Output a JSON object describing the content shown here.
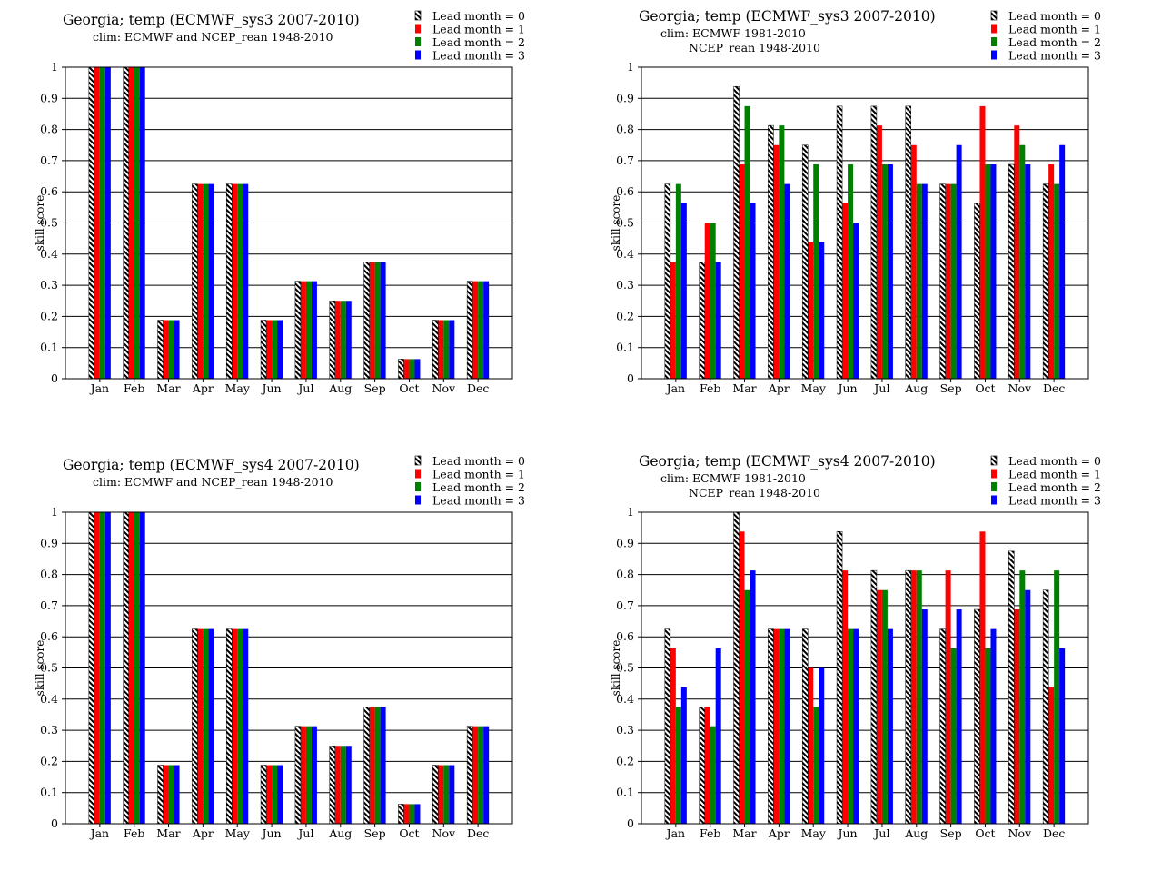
{
  "colors": {
    "lead0_pattern": "#000000",
    "lead1": "#ff0000",
    "lead2": "#008000",
    "lead3": "#0000ff",
    "grid": "#000000",
    "background": "#ffffff"
  },
  "chart_data": [
    {
      "type": "bar",
      "title": "Georgia; temp (ECMWF_sys3 2007-2010)",
      "subtitle_lines": [
        "clim: ECMWF and NCEP_rean 1948-2010"
      ],
      "xlabel": "",
      "ylabel": "skill  score",
      "ylim": [
        0,
        1
      ],
      "yticks": [
        "0",
        "0.1",
        "0.2",
        "0.3",
        "0.4",
        "0.5",
        "0.6",
        "0.7",
        "0.8",
        "0.9",
        "1"
      ],
      "grid": true,
      "legend_position": "top-right",
      "categories": [
        "Jan",
        "Feb",
        "Mar",
        "Apr",
        "May",
        "Jun",
        "Jul",
        "Aug",
        "Sep",
        "Oct",
        "Nov",
        "Dec"
      ],
      "series": [
        {
          "name": "Lead month = 0",
          "values": [
            1,
            1,
            0.188,
            0.625,
            0.625,
            0.188,
            0.313,
            0.25,
            0.375,
            0.063,
            0.188,
            0.313
          ]
        },
        {
          "name": "Lead month = 1",
          "values": [
            1,
            1,
            0.188,
            0.625,
            0.625,
            0.188,
            0.313,
            0.25,
            0.375,
            0.063,
            0.188,
            0.313
          ]
        },
        {
          "name": "Lead month = 2",
          "values": [
            1,
            1,
            0.188,
            0.625,
            0.625,
            0.188,
            0.313,
            0.25,
            0.375,
            0.063,
            0.188,
            0.313
          ]
        },
        {
          "name": "Lead month = 3",
          "values": [
            1,
            1,
            0.188,
            0.625,
            0.625,
            0.188,
            0.313,
            0.25,
            0.375,
            0.063,
            0.188,
            0.313
          ]
        }
      ]
    },
    {
      "type": "bar",
      "title": "Georgia; temp (ECMWF_sys3 2007-2010)",
      "subtitle_lines": [
        "clim: ECMWF 1981-2010",
        "NCEP_rean 1948-2010"
      ],
      "xlabel": "",
      "ylabel": "skill  score",
      "ylim": [
        0,
        1
      ],
      "yticks": [
        "0",
        "0.1",
        "0.2",
        "0.3",
        "0.4",
        "0.5",
        "0.6",
        "0.7",
        "0.8",
        "0.9",
        "1"
      ],
      "grid": true,
      "legend_position": "top-right",
      "categories": [
        "Jan",
        "Feb",
        "Mar",
        "Apr",
        "May",
        "Jun",
        "Jul",
        "Aug",
        "Sep",
        "Oct",
        "Nov",
        "Dec"
      ],
      "series": [
        {
          "name": "Lead month = 0",
          "values": [
            0.625,
            0.375,
            0.938,
            0.813,
            0.75,
            0.875,
            0.875,
            0.875,
            0.625,
            0.563,
            0.688,
            0.625
          ]
        },
        {
          "name": "Lead month = 1",
          "values": [
            0.375,
            0.5,
            0.688,
            0.75,
            0.438,
            0.563,
            0.813,
            0.75,
            0.625,
            0.875,
            0.813,
            0.688
          ]
        },
        {
          "name": "Lead month = 2",
          "values": [
            0.625,
            0.5,
            0.875,
            0.813,
            0.688,
            0.688,
            0.688,
            0.625,
            0.625,
            0.688,
            0.75,
            0.625
          ]
        },
        {
          "name": "Lead month = 3",
          "values": [
            0.563,
            0.375,
            0.563,
            0.625,
            0.438,
            0.5,
            0.688,
            0.625,
            0.75,
            0.688,
            0.688,
            0.75
          ]
        }
      ]
    },
    {
      "type": "bar",
      "title": "Georgia; temp (ECMWF_sys4 2007-2010)",
      "subtitle_lines": [
        "clim: ECMWF and NCEP_rean 1948-2010"
      ],
      "xlabel": "",
      "ylabel": "skill  score",
      "ylim": [
        0,
        1
      ],
      "yticks": [
        "0",
        "0.1",
        "0.2",
        "0.3",
        "0.4",
        "0.5",
        "0.6",
        "0.7",
        "0.8",
        "0.9",
        "1"
      ],
      "grid": true,
      "legend_position": "top-right",
      "categories": [
        "Jan",
        "Feb",
        "Mar",
        "Apr",
        "May",
        "Jun",
        "Jul",
        "Aug",
        "Sep",
        "Oct",
        "Nov",
        "Dec"
      ],
      "series": [
        {
          "name": "Lead month = 0",
          "values": [
            1,
            1,
            0.188,
            0.625,
            0.625,
            0.188,
            0.313,
            0.25,
            0.375,
            0.063,
            0.188,
            0.313
          ]
        },
        {
          "name": "Lead month = 1",
          "values": [
            1,
            1,
            0.188,
            0.625,
            0.625,
            0.188,
            0.313,
            0.25,
            0.375,
            0.063,
            0.188,
            0.313
          ]
        },
        {
          "name": "Lead month = 2",
          "values": [
            1,
            1,
            0.188,
            0.625,
            0.625,
            0.188,
            0.313,
            0.25,
            0.375,
            0.063,
            0.188,
            0.313
          ]
        },
        {
          "name": "Lead month = 3",
          "values": [
            1,
            1,
            0.188,
            0.625,
            0.625,
            0.188,
            0.313,
            0.25,
            0.375,
            0.063,
            0.188,
            0.313
          ]
        }
      ]
    },
    {
      "type": "bar",
      "title": "Georgia; temp (ECMWF_sys4 2007-2010)",
      "subtitle_lines": [
        "clim: ECMWF 1981-2010",
        "NCEP_rean 1948-2010"
      ],
      "xlabel": "",
      "ylabel": "skill  score",
      "ylim": [
        0,
        1
      ],
      "yticks": [
        "0",
        "0.1",
        "0.2",
        "0.3",
        "0.4",
        "0.5",
        "0.6",
        "0.7",
        "0.8",
        "0.9",
        "1"
      ],
      "grid": true,
      "legend_position": "top-right",
      "categories": [
        "Jan",
        "Feb",
        "Mar",
        "Apr",
        "May",
        "Jun",
        "Jul",
        "Aug",
        "Sep",
        "Oct",
        "Nov",
        "Dec"
      ],
      "series": [
        {
          "name": "Lead month = 0",
          "values": [
            0.625,
            0.375,
            1.0,
            0.625,
            0.625,
            0.938,
            0.813,
            0.813,
            0.625,
            0.688,
            0.875,
            0.75
          ]
        },
        {
          "name": "Lead month = 1",
          "values": [
            0.563,
            0.375,
            0.938,
            0.625,
            0.5,
            0.813,
            0.75,
            0.813,
            0.813,
            0.938,
            0.688,
            0.438
          ]
        },
        {
          "name": "Lead month = 2",
          "values": [
            0.375,
            0.313,
            0.75,
            0.625,
            0.375,
            0.625,
            0.75,
            0.813,
            0.563,
            0.563,
            0.813,
            0.813
          ]
        },
        {
          "name": "Lead month = 3",
          "values": [
            0.438,
            0.563,
            0.813,
            0.625,
            0.5,
            0.625,
            0.625,
            0.688,
            0.688,
            0.625,
            0.75,
            0.563
          ]
        }
      ]
    }
  ]
}
